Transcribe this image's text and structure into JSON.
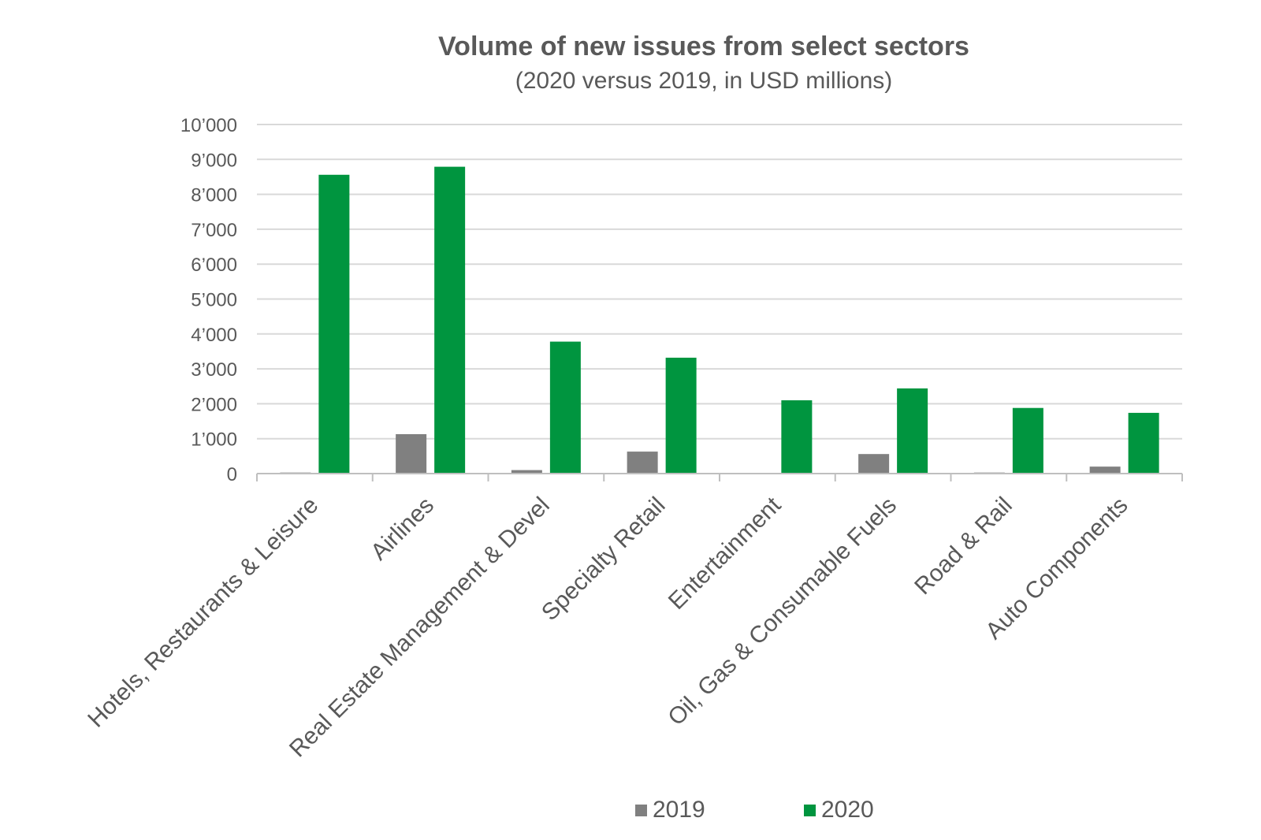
{
  "chart_data": {
    "type": "bar",
    "title": "Volume of new issues from select sectors",
    "subtitle": "(2020 versus 2019, in USD millions)",
    "categories": [
      "Hotels, Restaurants & Leisure",
      "Airlines",
      "Real Estate Management & Devel",
      "Specialty Retail",
      "Entertainment",
      "Oil, Gas & Consumable Fuels",
      "Road & Rail",
      "Auto Components"
    ],
    "series": [
      {
        "name": "2019",
        "color": "#808080",
        "values": [
          30,
          1130,
          100,
          630,
          0,
          560,
          30,
          200
        ]
      },
      {
        "name": "2020",
        "color": "#00953F",
        "values": [
          8560,
          8790,
          3780,
          3320,
          2100,
          2440,
          1880,
          1740
        ]
      }
    ],
    "ylim": [
      0,
      10000
    ],
    "yticks": [
      0,
      1000,
      2000,
      3000,
      4000,
      5000,
      6000,
      7000,
      8000,
      9000,
      10000
    ],
    "ytick_labels": [
      "0",
      "1’000",
      "2’000",
      "3’000",
      "4’000",
      "5’000",
      "6’000",
      "7’000",
      "8’000",
      "9’000",
      "10’000"
    ],
    "xlabel": "",
    "ylabel": "",
    "grid": "horizontal",
    "legend_position": "bottom"
  }
}
